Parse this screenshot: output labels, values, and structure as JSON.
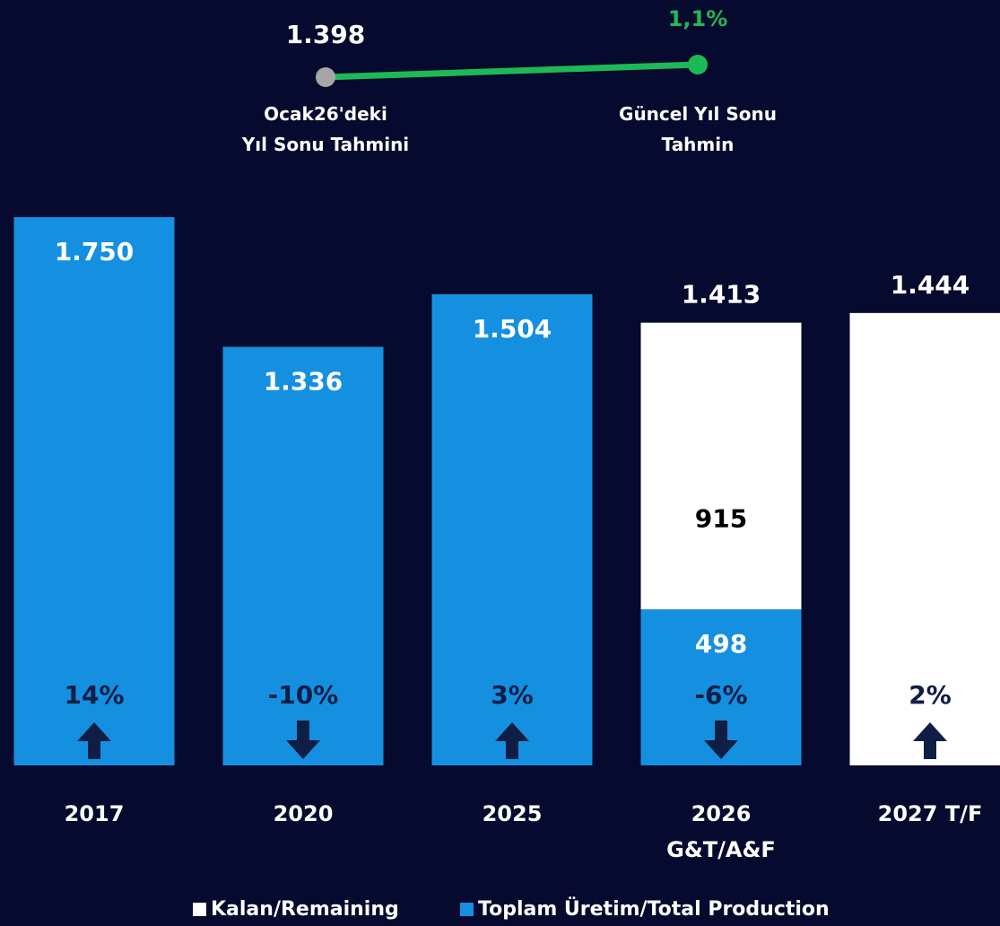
{
  "chart_data": {
    "type": "bar",
    "stacked": true,
    "categories": [
      "2017",
      "2020",
      "2025",
      "2026\nG&T/A&F",
      "2027 T/F"
    ],
    "series": [
      {
        "name": "Kalan/Remaining",
        "color": "#ffffff",
        "label_color": "#000000",
        "values": [
          null,
          null,
          null,
          915,
          1444
        ],
        "value_labels": [
          null,
          null,
          null,
          "915",
          "1.444"
        ]
      },
      {
        "name": "Toplam Üretim/Total Production",
        "color": "#1590e0",
        "label_color": "#ffffff",
        "values": [
          1750,
          1336,
          1504,
          498,
          null
        ],
        "value_labels": [
          "1.750",
          "1.336",
          "1.504",
          "498",
          null
        ]
      }
    ],
    "totals": {
      "values": [
        null,
        null,
        null,
        1413,
        null
      ],
      "value_labels": [
        null,
        null,
        null,
        "1.413",
        null
      ]
    },
    "growth": {
      "values": [
        14,
        -10,
        3,
        -6,
        2
      ],
      "value_labels": [
        "14%",
        "-10%",
        "3%",
        "-6%",
        "2%"
      ],
      "color": "#0e1e45"
    },
    "ylim": [
      0,
      1750
    ],
    "forecast_change": {
      "start": {
        "value": 1398,
        "value_label": "1.398",
        "label": "Ocak26'deki\nYıl Sonu Tahmini",
        "color": "#a6a6a6"
      },
      "end": {
        "change": 1.1,
        "change_label": "1,1%",
        "label": "Güncel Yıl Sonu\nTahmin",
        "color": "#1db954"
      }
    }
  }
}
